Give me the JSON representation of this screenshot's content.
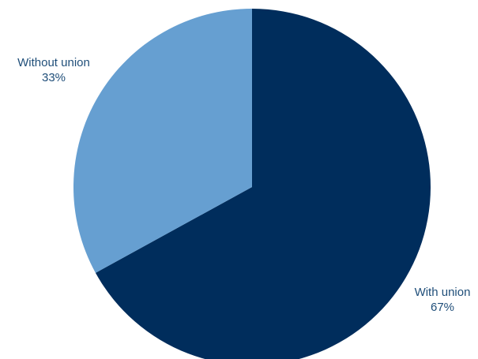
{
  "chart_data": {
    "type": "pie",
    "title": "",
    "slices": [
      {
        "label": "With union",
        "value": 67,
        "value_label": "67%",
        "color": "#002d5c"
      },
      {
        "label": "Without union",
        "value": 33,
        "value_label": "33%",
        "color": "#669fd1"
      }
    ],
    "start_angle_deg": 0,
    "direction": "clockwise",
    "legend": "none",
    "label_color": "#1f4e79"
  }
}
